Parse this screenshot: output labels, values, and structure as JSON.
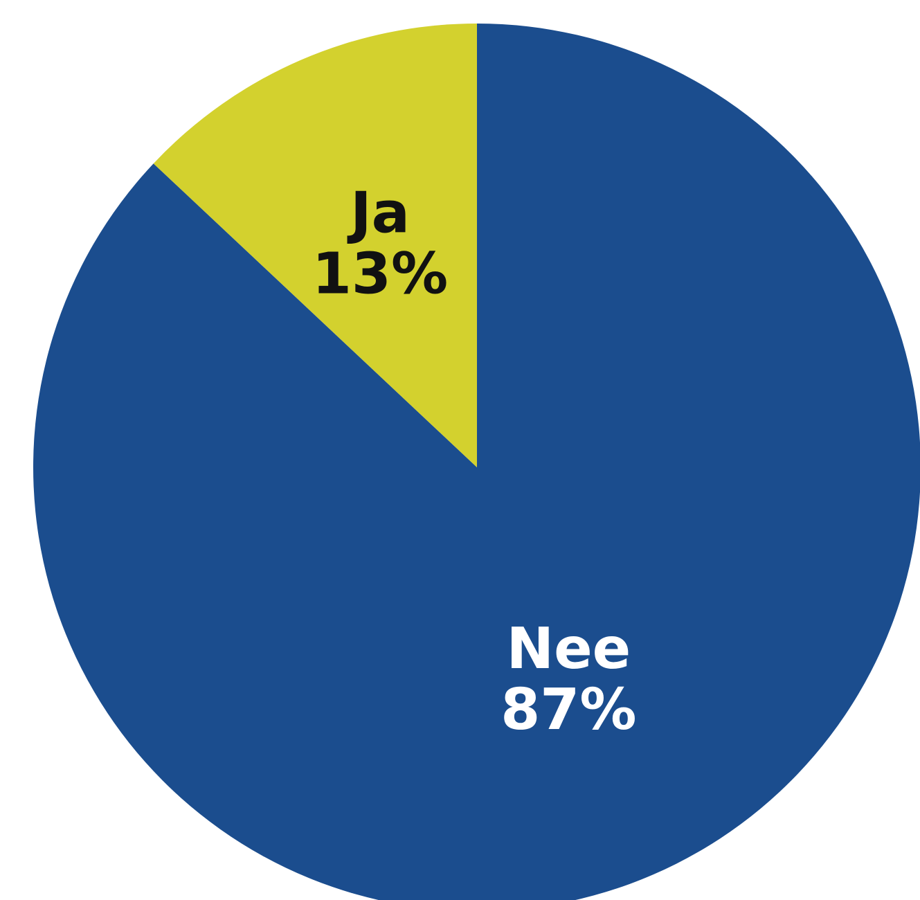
{
  "chart_data": {
    "type": "pie",
    "start_angle_deg": 0,
    "direction": "clockwise",
    "slices": [
      {
        "label": "Nee",
        "value": 87,
        "display": "87%",
        "color": "#1b4d8e",
        "label_color": "#ffffff"
      },
      {
        "label": "Ja",
        "value": 13,
        "display": "13%",
        "color": "#d3d12e",
        "label_color": "#111111"
      }
    ]
  }
}
